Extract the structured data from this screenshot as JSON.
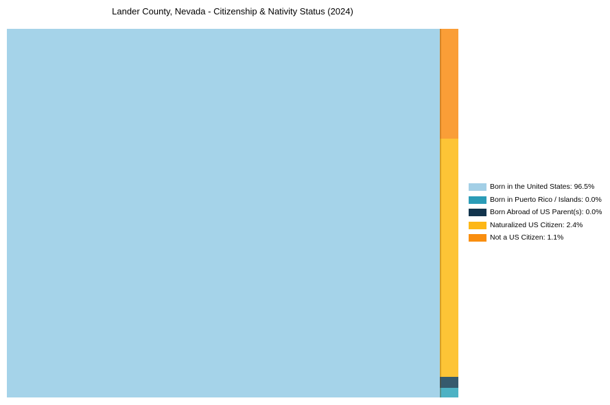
{
  "title": "Lander County, Nevada - Citizenship & Nativity Status (2024)",
  "chart_data": {
    "type": "treemap",
    "title": "Lander County, Nevada - Citizenship & Nativity Status (2024)",
    "categories": [
      "Born in the United States",
      "Born in Puerto Rico / Islands",
      "Born Abroad of US Parent(s)",
      "Naturalized US Citizen",
      "Not a US Citizen"
    ],
    "values": [
      96.5,
      0.0,
      0.0,
      2.4,
      1.1
    ],
    "unit": "%",
    "legend_position": "right-middle",
    "layout": "single large tile on left (96.5%), narrow right column stacked top-to-bottom: Not a US Citizen, Naturalized US Citizen, Born Abroad of US Parent(s), Born in Puerto Rico / Islands"
  },
  "tiles": {
    "born_us": "#a5d3e9",
    "not_citizen": "#fa9e37",
    "naturalized": "#fdc436",
    "born_abroad": "#365a6d",
    "puerto_rico": "#4db2c4"
  },
  "legend": {
    "items": [
      {
        "label": "Born in the United States: 96.5%",
        "color": "#a3cfe6"
      },
      {
        "label": "Born in Puerto Rico / Islands: 0.0%",
        "color": "#2b9cb7"
      },
      {
        "label": "Born Abroad of US Parent(s): 0.0%",
        "color": "#12344d"
      },
      {
        "label": "Naturalized US Citizen: 2.4%",
        "color": "#fdb717"
      },
      {
        "label": "Not a US Citizen: 1.1%",
        "color": "#f98e0f"
      }
    ]
  }
}
